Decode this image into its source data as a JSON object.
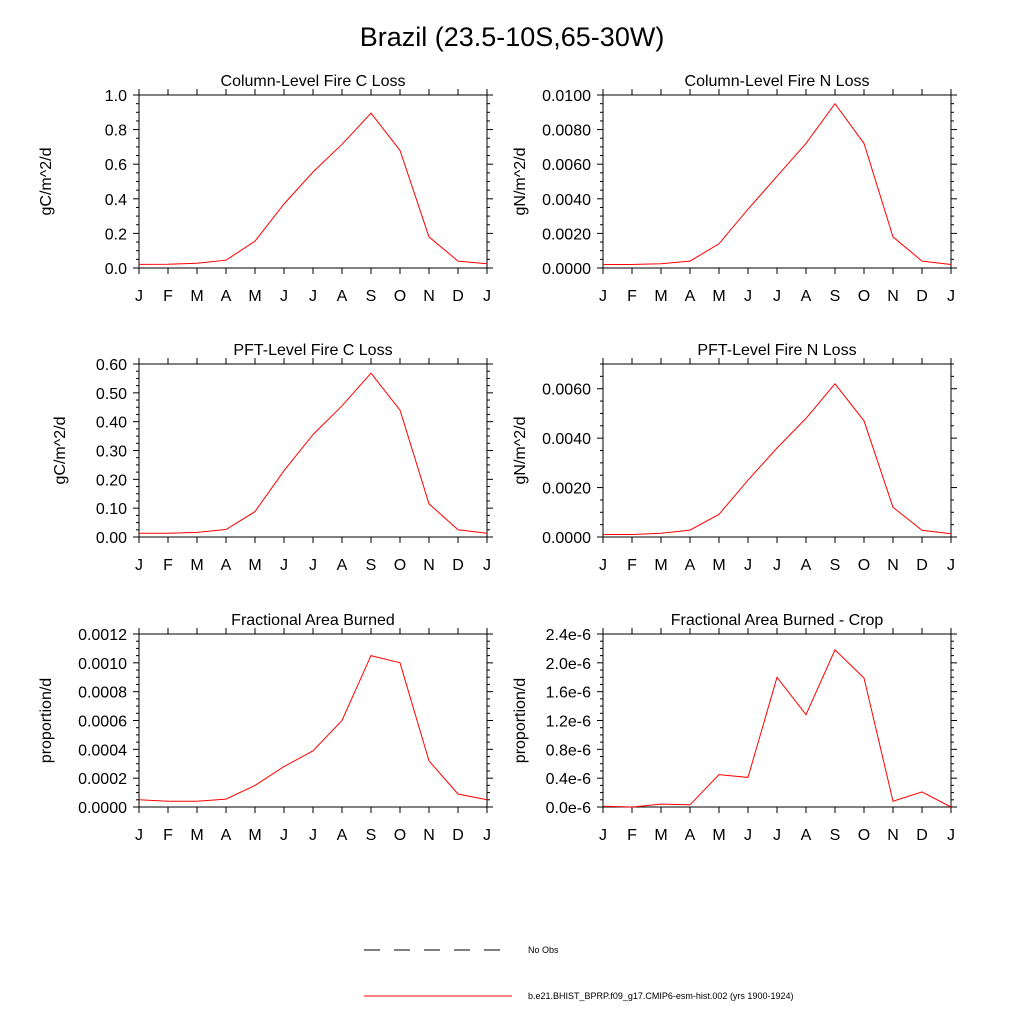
{
  "title": "Brazil (23.5-10S,65-30W)",
  "months": [
    "J",
    "F",
    "M",
    "A",
    "M",
    "J",
    "J",
    "A",
    "S",
    "O",
    "N",
    "D",
    "J"
  ],
  "series_color": "#ff0000",
  "obs_color": "#000000",
  "chart_data": [
    {
      "type": "line",
      "title": "Column-Level Fire C Loss",
      "ylabel": "gC/m^2/d",
      "categories": [
        "J",
        "F",
        "M",
        "A",
        "M",
        "J",
        "J",
        "A",
        "S",
        "O",
        "N",
        "D",
        "J"
      ],
      "ylim": [
        0,
        1.0
      ],
      "yticks": [
        "0.0",
        "0.2",
        "0.4",
        "0.6",
        "0.8",
        "1.0"
      ],
      "yticks_values": [
        0,
        0.2,
        0.4,
        0.6,
        0.8,
        1.0
      ],
      "values": [
        0.021,
        0.022,
        0.027,
        0.045,
        0.155,
        0.37,
        0.555,
        0.715,
        0.895,
        0.68,
        0.18,
        0.04,
        0.025
      ]
    },
    {
      "type": "line",
      "title": "Column-Level Fire N Loss",
      "ylabel": "gN/m^2/d",
      "categories": [
        "J",
        "F",
        "M",
        "A",
        "M",
        "J",
        "J",
        "A",
        "S",
        "O",
        "N",
        "D",
        "J"
      ],
      "ylim": [
        0,
        0.01
      ],
      "yticks": [
        "0.0000",
        "0.0020",
        "0.0040",
        "0.0060",
        "0.0080",
        "0.0100"
      ],
      "yticks_values": [
        0,
        0.002,
        0.004,
        0.006,
        0.008,
        0.01
      ],
      "values": [
        0.0002,
        0.0002,
        0.00025,
        0.0004,
        0.0014,
        0.0034,
        0.0053,
        0.0072,
        0.0095,
        0.0072,
        0.0018,
        0.0004,
        0.0002
      ]
    },
    {
      "type": "line",
      "title": "PFT-Level Fire C Loss",
      "ylabel": "gC/m^2/d",
      "categories": [
        "J",
        "F",
        "M",
        "A",
        "M",
        "J",
        "J",
        "A",
        "S",
        "O",
        "N",
        "D",
        "J"
      ],
      "ylim": [
        0,
        0.6
      ],
      "yticks": [
        "0.00",
        "0.10",
        "0.20",
        "0.30",
        "0.40",
        "0.50",
        "0.60"
      ],
      "yticks_values": [
        0,
        0.1,
        0.2,
        0.3,
        0.4,
        0.5,
        0.6
      ],
      "values": [
        0.013,
        0.013,
        0.016,
        0.026,
        0.088,
        0.23,
        0.355,
        0.455,
        0.568,
        0.44,
        0.115,
        0.025,
        0.013
      ]
    },
    {
      "type": "line",
      "title": "PFT-Level Fire N Loss",
      "ylabel": "gN/m^2/d",
      "categories": [
        "J",
        "F",
        "M",
        "A",
        "M",
        "J",
        "J",
        "A",
        "S",
        "O",
        "N",
        "D",
        "J"
      ],
      "ylim": [
        0,
        0.007
      ],
      "yticks": [
        "0.0000",
        "0.0020",
        "0.0040",
        "0.0060"
      ],
      "yticks_values": [
        0,
        0.002,
        0.004,
        0.006
      ],
      "values": [
        0.0001,
        0.0001,
        0.00015,
        0.00028,
        0.00092,
        0.0023,
        0.0036,
        0.0048,
        0.0062,
        0.0047,
        0.0012,
        0.00027,
        0.00013
      ]
    },
    {
      "type": "line",
      "title": "Fractional Area Burned",
      "ylabel": "proportion/d",
      "categories": [
        "J",
        "F",
        "M",
        "A",
        "M",
        "J",
        "J",
        "A",
        "S",
        "O",
        "N",
        "D",
        "J"
      ],
      "ylim": [
        0,
        0.0012
      ],
      "yticks": [
        "0.0000",
        "0.0002",
        "0.0004",
        "0.0006",
        "0.0008",
        "0.0010",
        "0.0012"
      ],
      "yticks_values": [
        0,
        0.0002,
        0.0004,
        0.0006,
        0.0008,
        0.001,
        0.0012
      ],
      "values": [
        5e-05,
        4e-05,
        4e-05,
        5.5e-05,
        0.00015,
        0.00028,
        0.00039,
        0.0006,
        0.00105,
        0.001,
        0.00032,
        9e-05,
        5e-05
      ]
    },
    {
      "type": "line",
      "title": "Fractional Area Burned - Crop",
      "ylabel": "proportion/d",
      "categories": [
        "J",
        "F",
        "M",
        "A",
        "M",
        "J",
        "J",
        "A",
        "S",
        "O",
        "N",
        "D",
        "J"
      ],
      "ylim": [
        0,
        2.4e-06
      ],
      "yticks": [
        "0.0e-6",
        "0.4e-6",
        "0.8e-6",
        "1.2e-6",
        "1.6e-6",
        "2.0e-6",
        "2.4e-6"
      ],
      "yticks_values": [
        0,
        4e-07,
        8e-07,
        1.2e-06,
        1.6e-06,
        2e-06,
        2.4e-06
      ],
      "values": [
        1e-08,
        0.0,
        4e-08,
        3e-08,
        4.5e-07,
        4.1e-07,
        1.8e-06,
        1.28e-06,
        2.18e-06,
        1.79e-06,
        8e-08,
        2.1e-07,
        0.0
      ]
    }
  ],
  "legend": {
    "obs_label": "No Obs",
    "model_label": "b.e21.BHIST_BPRP.f09_g17.CMIP6-esm-hist.002 (yrs 1900-1924)"
  }
}
